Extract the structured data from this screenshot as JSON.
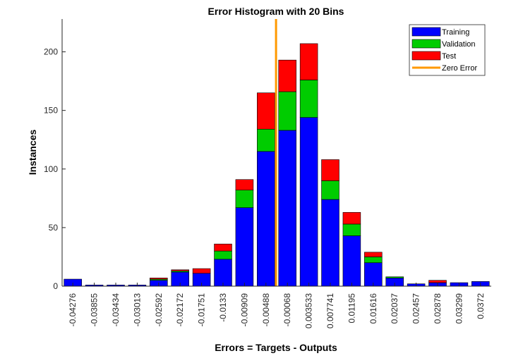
{
  "chart_data": {
    "type": "bar",
    "stacked": true,
    "title": "Error Histogram with 20 Bins",
    "xlabel": "Errors = Targets - Outputs",
    "ylabel": "Instances",
    "ylim": [
      0,
      228
    ],
    "yticks": [
      0,
      50,
      100,
      150,
      200
    ],
    "ytick_labels": [
      "0",
      "50",
      "100",
      "150",
      "200"
    ],
    "categories": [
      "-0.04276",
      "-0.03855",
      "-0.03434",
      "-0.03013",
      "-0.02592",
      "-0.02172",
      "-0.01751",
      "-0.0133",
      "-0.00909",
      "-0.00488",
      "-0.00068",
      "0.003533",
      "0.007741",
      "0.01195",
      "0.01616",
      "0.02037",
      "0.02457",
      "0.02878",
      "0.03299",
      "0.0372"
    ],
    "series": [
      {
        "name": "Training",
        "color": "#0000ff",
        "values": [
          6,
          1,
          1,
          1,
          5,
          12,
          11,
          23,
          67,
          115,
          133,
          144,
          74,
          43,
          20,
          7,
          2,
          3,
          3,
          4
        ]
      },
      {
        "name": "Validation",
        "color": "#00cc00",
        "values": [
          0,
          0,
          0,
          0,
          1,
          1,
          0,
          7,
          15,
          19,
          33,
          32,
          16,
          10,
          5,
          1,
          0,
          0,
          0,
          0
        ]
      },
      {
        "name": "Test",
        "color": "#ff0000",
        "values": [
          0,
          0,
          0,
          0,
          1,
          1,
          4,
          6,
          9,
          31,
          27,
          31,
          18,
          10,
          4,
          0,
          0,
          2,
          0,
          0
        ]
      }
    ],
    "zero_error": {
      "name": "Zero Error",
      "color": "#ff9900",
      "x_position_bins": 9.97
    },
    "legend": {
      "placement": "top-right"
    },
    "grid": false
  }
}
